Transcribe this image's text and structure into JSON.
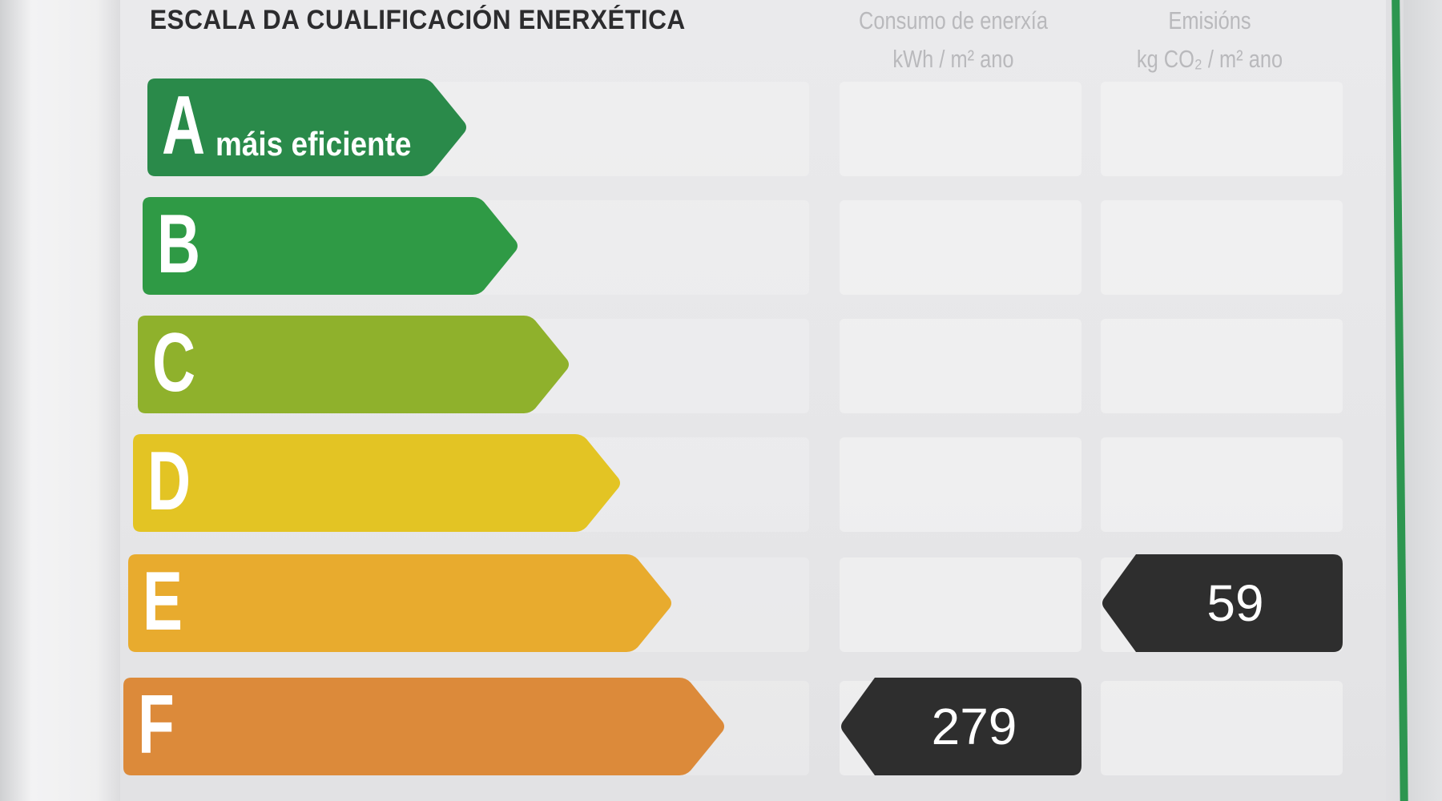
{
  "title": "ESCALA DA CUALIFICACIÓN ENERXÉTICA",
  "columns": {
    "consumo": {
      "label": "Consumo de enerxía",
      "unit": "kWh / m² ano"
    },
    "emisions": {
      "label": "Emisións",
      "unit": "kg CO₂ / m² ano"
    }
  },
  "bands": [
    {
      "letter": "A",
      "sub": "máis eficiente",
      "color": "#2a8a4a"
    },
    {
      "letter": "B",
      "sub": "",
      "color": "#2f9a45"
    },
    {
      "letter": "C",
      "sub": "",
      "color": "#8fb12c"
    },
    {
      "letter": "D",
      "sub": "",
      "color": "#e3c424"
    },
    {
      "letter": "E",
      "sub": "",
      "color": "#e8ab2e"
    },
    {
      "letter": "F",
      "sub": "",
      "color": "#dc8a3a"
    }
  ],
  "ratings": {
    "consumo": {
      "class": "F",
      "value": "279"
    },
    "emisions": {
      "class": "E",
      "value": "59"
    }
  },
  "colors": {
    "tag": "#2e2e2e",
    "border": "#2d9650"
  }
}
